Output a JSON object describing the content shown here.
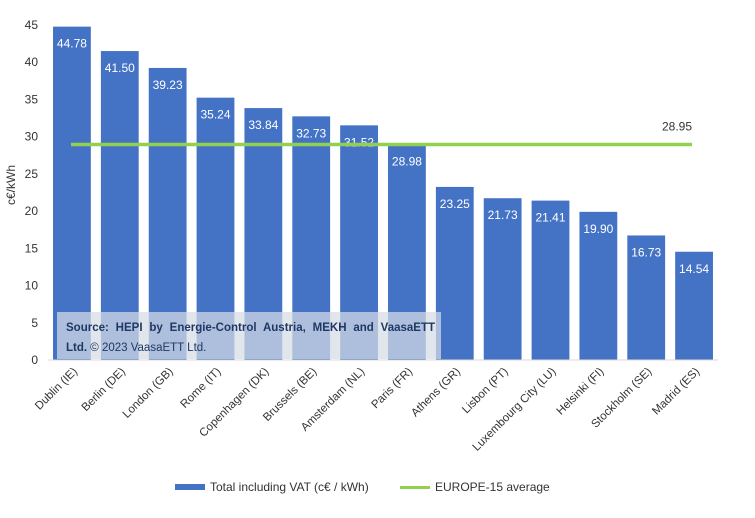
{
  "chart_data": {
    "type": "bar",
    "ylabel": "c€/kWh",
    "ylim": [
      0,
      45
    ],
    "yticks": [
      0,
      5,
      10,
      15,
      20,
      25,
      30,
      35,
      40,
      45
    ],
    "categories": [
      "Dublin (IE)",
      "Berlin (DE)",
      "London (GB)",
      "Rome (IT)",
      "Copenhagen (DK)",
      "Brussels (BE)",
      "Amsterdam (NL)",
      "Paris (FR)",
      "Athens (GR)",
      "Lisbon (PT)",
      "Luxembourg City (LU)",
      "Helsinki (FI)",
      "Stockholm (SE)",
      "Madrid (ES)"
    ],
    "series": [
      {
        "name": "Total including VAT (c€ / kWh)",
        "values": [
          44.78,
          41.5,
          39.23,
          35.24,
          33.84,
          32.73,
          31.52,
          28.98,
          23.25,
          21.73,
          21.41,
          19.9,
          16.73,
          14.54
        ],
        "color": "#4472c4"
      }
    ],
    "data_labels": [
      "44.78",
      "41.50",
      "39.23",
      "35.24",
      "33.84",
      "32.73",
      "31.52",
      "28.98",
      "23.25",
      "21.73",
      "21.41",
      "19.90",
      "16.73",
      "14.54"
    ],
    "reference_line": {
      "name": "EUROPE-15 average",
      "value": 28.95,
      "label": "28.95",
      "color": "#92d050"
    },
    "grid": false,
    "legend_position": "bottom"
  },
  "source": {
    "line1": "Source: HEPI by Energie-Control Austria, MEKH and VaasaETT",
    "line2_bold": "Ltd.",
    "line2_rest": " © 2023 VaasaETT Ltd."
  },
  "legend": {
    "bar_label": "Total including VAT (c€ / kWh)",
    "line_label": "EUROPE-15 average"
  }
}
